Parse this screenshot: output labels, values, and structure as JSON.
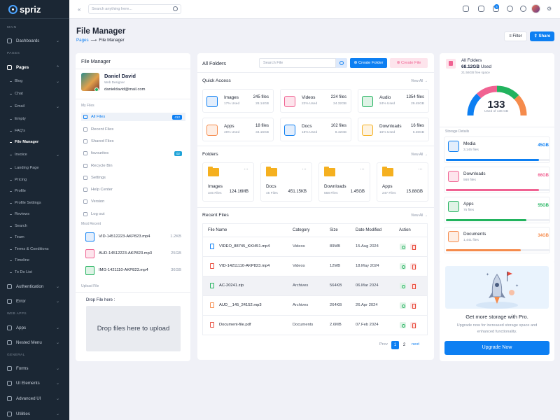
{
  "brand": {
    "name": "spriz"
  },
  "header": {
    "search_placeholder": "Search anything here...",
    "notif_count": "5"
  },
  "sidebar": {
    "sections": {
      "main": "MAIN",
      "pages": "PAGES",
      "webapps": "WEB APPS",
      "general": "GENERAL"
    },
    "items": {
      "dashboards": "Dashboards",
      "pages": "Pages",
      "authentication": "Authentication",
      "error": "Error",
      "apps": "Apps",
      "nested_menu": "Nested Menu",
      "forms": "Forms",
      "ui_elements": "UI Elements",
      "advanced_ui": "Advanced UI",
      "utilities": "Utilities"
    },
    "sub": {
      "blog": "Blog",
      "chat": "Chat",
      "email": "Email",
      "empty": "Empty",
      "faqs": "FAQ's",
      "file_manager": "File Manager",
      "invoice": "Invoice",
      "landing": "Landing Page",
      "pricing": "Pricing",
      "profile": "Profile",
      "profile_settings": "Profile Settings",
      "reviews": "Reviews",
      "search": "Search",
      "team": "Team",
      "terms": "Terms & Conditions",
      "timeline": "Timeline",
      "todo": "To Do List"
    }
  },
  "page": {
    "title": "File Manager",
    "crumb_link": "Pages",
    "crumb_current": "File Manager",
    "filter": "Filter",
    "share": "Share"
  },
  "file_manager": {
    "title": "File Manager",
    "profile": {
      "name": "Daniel David",
      "role": "Web Designer",
      "email": "danieldavid@mail.com"
    },
    "my_files_label": "My Files",
    "menu": {
      "all_files": "All Files",
      "all_files_count": "412",
      "recent_files": "Recent Files",
      "shared_files": "Shared Files",
      "favourites": "favourites",
      "favourites_count": "02",
      "recycle_bin": "Recycle Bin",
      "settings": "Settings",
      "help_center": "Help Center",
      "version": "Version",
      "log_out": "Log out"
    },
    "most_recent_label": "Most Recent",
    "recent": [
      {
        "name": "VID-14512223-AKP823.mp4",
        "size": "1.2KB"
      },
      {
        "name": "AUD-14512223-AKP823.mp3",
        "size": "25GB"
      },
      {
        "name": "IMG-1421110-AKP823.mp4",
        "size": "36GB"
      }
    ],
    "upload_label": "Upload File",
    "drop_label": "Drop File here :",
    "drop_text": "Drop files here to upload"
  },
  "all_folders": {
    "title": "All Folders",
    "search_placeholder": "Search File",
    "create_folder": "Create Folder",
    "create_file": "Create File",
    "quick_access": {
      "title": "Quick Access",
      "view_all": "View All",
      "items": [
        {
          "name": "Images",
          "used": "17% Used",
          "files": "245 files",
          "size": "28.14GB"
        },
        {
          "name": "Videos",
          "used": "22% Used",
          "files": "224 files",
          "size": "24.32GB"
        },
        {
          "name": "Audio",
          "used": "24% Used",
          "files": "1354 files",
          "size": "29.45GB"
        },
        {
          "name": "Apps",
          "used": "46% Used",
          "files": "18 files",
          "size": "34.16GB"
        },
        {
          "name": "Docs",
          "used": "18% Used",
          "files": "102 files",
          "size": "8.42GB"
        },
        {
          "name": "Downloads",
          "used": "16% Used",
          "files": "16 files",
          "size": "6.36GB"
        }
      ]
    },
    "folders": {
      "title": "Folders",
      "view_all": "View All",
      "items": [
        {
          "name": "Images",
          "count": "345 Files",
          "size": "124.16MB"
        },
        {
          "name": "Docs",
          "count": "45 Files",
          "size": "451.15KB"
        },
        {
          "name": "Downloads",
          "count": "568 Files",
          "size": "1.45GB"
        },
        {
          "name": "Apps",
          "count": "247 Files",
          "size": "15.88GB"
        }
      ]
    },
    "recent_files": {
      "title": "Recent Files",
      "view_all": "View All",
      "headers": {
        "name": "File Name",
        "category": "Category",
        "size": "Size",
        "date": "Date Modified",
        "action": "Action"
      },
      "rows": [
        {
          "name": "VIDEO_88745_KKI451.mp4",
          "category": "Videos",
          "size": "89MB",
          "date": "15.Aug 2024"
        },
        {
          "name": "VID-14211110-AKP823.mp4",
          "category": "Videos",
          "size": "12MB",
          "date": "18.May 2024"
        },
        {
          "name": "AC-20241.zip",
          "category": "Archives",
          "size": "564KB",
          "date": "06.Mar 2024"
        },
        {
          "name": "AUD__145_24152.mp3",
          "category": "Archives",
          "size": "264KB",
          "date": "26.Apr 2024"
        },
        {
          "name": "Document-file.pdf",
          "category": "Documents",
          "size": "2.6MB",
          "date": "07.Feb 2024"
        }
      ],
      "pagination": {
        "prev": "Prev",
        "p1": "1",
        "p2": "2",
        "next": "next"
      }
    }
  },
  "storage": {
    "title": "All Folders",
    "used": "68.12GB",
    "used_label": "Used",
    "free": "21.56GB free space",
    "gauge_value": "133",
    "gauge_sub": "Used of 136 GB",
    "details_label": "Storage Details",
    "items": [
      {
        "name": "Media",
        "files": "3,145 files",
        "value": "45GB",
        "color": "#0d7ff2",
        "fill": 0.9
      },
      {
        "name": "Downloads",
        "files": "568 files",
        "value": "66GB",
        "color": "#f06292",
        "fill": 0.9
      },
      {
        "name": "Apps",
        "files": "75 files",
        "value": "55GB",
        "color": "#22b35e",
        "fill": 0.78
      },
      {
        "name": "Documents",
        "files": "1,441 files",
        "value": "34GB",
        "color": "#f58b4c",
        "fill": 0.72
      }
    ],
    "promo_title": "Get more storage with Pro.",
    "promo_text": "Upgrade now for increased storage space and enhanced functionality.",
    "upgrade": "Upgrade Now"
  }
}
